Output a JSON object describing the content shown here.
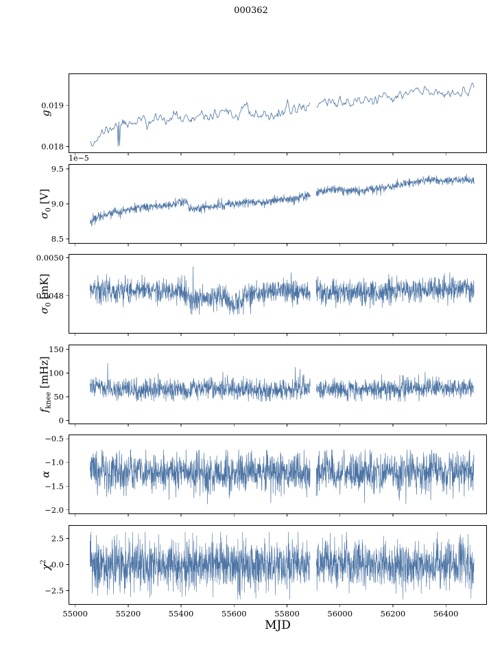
{
  "chart_data": {
    "type": "line",
    "title": "000362",
    "xlabel": "MJD",
    "line_color": "#4c74a4",
    "background": "#ffffff",
    "xlim": [
      54975,
      56555
    ],
    "x_range_data": [
      55056,
      56506
    ],
    "x_ticks": [
      55000,
      55200,
      55400,
      55600,
      55800,
      56000,
      56200,
      56400
    ],
    "x_tick_labels": [
      "55000",
      "55200",
      "55400",
      "55600",
      "55800",
      "56000",
      "56200",
      "56400"
    ],
    "gaps": [
      [
        55888,
        55910
      ]
    ],
    "panels": [
      {
        "name": "g",
        "ylabel_parts": [
          {
            "text": "g",
            "italic": true
          }
        ],
        "ylim": [
          0.01784,
          0.01977
        ],
        "ytick_values": [
          0.018,
          0.019
        ],
        "ytick_labels": [
          "0.018",
          "0.019"
        ],
        "n_points": 520,
        "seed": 11,
        "noise_amp": 0.00011,
        "smooth": 1,
        "lw": 0.8,
        "spikes": {
          "prob": 0.006,
          "amp": 0.00028,
          "dir": -1
        },
        "clip": [
          0.018,
          0.0196
        ],
        "baseline": [
          [
            55056,
            0.01823
          ],
          [
            55070,
            0.01808
          ],
          [
            55085,
            0.0182
          ],
          [
            55110,
            0.01835
          ],
          [
            55150,
            0.0185
          ],
          [
            55190,
            0.01857
          ],
          [
            55230,
            0.01862
          ],
          [
            55262,
            0.01866
          ],
          [
            55272,
            0.01842
          ],
          [
            55285,
            0.01864
          ],
          [
            55330,
            0.01868
          ],
          [
            55380,
            0.0187
          ],
          [
            55425,
            0.01872
          ],
          [
            55438,
            0.01856
          ],
          [
            55455,
            0.0187
          ],
          [
            55520,
            0.01873
          ],
          [
            55580,
            0.01876
          ],
          [
            55620,
            0.01878
          ],
          [
            55643,
            0.01903
          ],
          [
            55655,
            0.01888
          ],
          [
            55672,
            0.01876
          ],
          [
            55700,
            0.0187
          ],
          [
            55730,
            0.01874
          ],
          [
            55770,
            0.01882
          ],
          [
            55810,
            0.01888
          ],
          [
            55850,
            0.01894
          ],
          [
            55890,
            0.019
          ],
          [
            55930,
            0.01906
          ],
          [
            55960,
            0.01911
          ],
          [
            55990,
            0.01905
          ],
          [
            56020,
            0.01909
          ],
          [
            56060,
            0.01908
          ],
          [
            56100,
            0.01913
          ],
          [
            56140,
            0.01912
          ],
          [
            56180,
            0.01917
          ],
          [
            56220,
            0.01921
          ],
          [
            56255,
            0.01927
          ],
          [
            56285,
            0.01938
          ],
          [
            56310,
            0.01928
          ],
          [
            56340,
            0.01934
          ],
          [
            56370,
            0.01932
          ],
          [
            56400,
            0.01929
          ],
          [
            56430,
            0.01934
          ],
          [
            56460,
            0.0193
          ],
          [
            56506,
            0.01934
          ]
        ]
      },
      {
        "name": "sigma0-V",
        "ylabel_parts": [
          {
            "text": "σ",
            "italic": true
          },
          {
            "text": "0",
            "sub": true
          },
          {
            "text": " [V]"
          }
        ],
        "offset_text": "1e−5",
        "ylim": [
          8.43e-05,
          9.57e-05
        ],
        "ytick_values": [
          8.5e-05,
          9e-05,
          9.5e-05
        ],
        "ytick_labels": [
          "8.5",
          "9.0",
          "9.5"
        ],
        "n_points": 1500,
        "seed": 22,
        "noise_amp": 3.2e-07,
        "lw": 0.7,
        "spikes": {
          "prob": 0.004,
          "amp": 5e-07,
          "dir": 0
        },
        "clip": [
          8.62e-05,
          9.47e-05
        ],
        "baseline": [
          [
            55056,
            8.72e-05
          ],
          [
            55075,
            8.8e-05
          ],
          [
            55110,
            8.85e-05
          ],
          [
            55160,
            8.88e-05
          ],
          [
            55210,
            8.92e-05
          ],
          [
            55260,
            8.95e-05
          ],
          [
            55310,
            8.97e-05
          ],
          [
            55360,
            8.99e-05
          ],
          [
            55420,
            9.04e-05
          ],
          [
            55432,
            8.91e-05
          ],
          [
            55470,
            8.94e-05
          ],
          [
            55530,
            8.97e-05
          ],
          [
            55590,
            9e-05
          ],
          [
            55650,
            9.02e-05
          ],
          [
            55710,
            9.03e-05
          ],
          [
            55770,
            9.05e-05
          ],
          [
            55830,
            9.07e-05
          ],
          [
            55880,
            9.12e-05
          ],
          [
            55920,
            9.17e-05
          ],
          [
            55960,
            9.2e-05
          ],
          [
            56010,
            9.2e-05
          ],
          [
            56060,
            9.18e-05
          ],
          [
            56110,
            9.2e-05
          ],
          [
            56160,
            9.23e-05
          ],
          [
            56210,
            9.26e-05
          ],
          [
            56260,
            9.3e-05
          ],
          [
            56310,
            9.33e-05
          ],
          [
            56360,
            9.35e-05
          ],
          [
            56400,
            9.32e-05
          ],
          [
            56440,
            9.35e-05
          ],
          [
            56506,
            9.33e-05
          ]
        ]
      },
      {
        "name": "sigma0-mK",
        "ylabel_parts": [
          {
            "text": "σ",
            "italic": true
          },
          {
            "text": "0",
            "sub": true
          },
          {
            "text": " [mK]"
          }
        ],
        "ylim": [
          0.0046,
          0.00502
        ],
        "ytick_values": [
          0.0048,
          0.005
        ],
        "ytick_labels": [
          "0.0048",
          "0.0050"
        ],
        "n_points": 1700,
        "seed": 33,
        "noise_amp": 3.2e-05,
        "lw": 0.7,
        "spikes": {
          "prob": 0.01,
          "amp": 6e-05,
          "dir": 0
        },
        "clip": [
          0.0047,
          0.00498
        ],
        "baseline": [
          [
            55056,
            0.00483
          ],
          [
            55120,
            0.00483
          ],
          [
            55200,
            0.00482
          ],
          [
            55260,
            0.00484
          ],
          [
            55330,
            0.00482
          ],
          [
            55400,
            0.00482
          ],
          [
            55435,
            0.00478
          ],
          [
            55500,
            0.00478
          ],
          [
            55545,
            0.0048
          ],
          [
            55585,
            0.00477
          ],
          [
            55615,
            0.00476
          ],
          [
            55645,
            0.0048
          ],
          [
            55690,
            0.00481
          ],
          [
            55750,
            0.00482
          ],
          [
            55850,
            0.00482
          ],
          [
            55950,
            0.00482
          ],
          [
            56050,
            0.00482
          ],
          [
            56150,
            0.00482
          ],
          [
            56230,
            0.00484
          ],
          [
            56280,
            0.00483
          ],
          [
            56350,
            0.00483
          ],
          [
            56420,
            0.00483
          ],
          [
            56506,
            0.00483
          ]
        ]
      },
      {
        "name": "fknee",
        "ylabel_parts": [
          {
            "text": "f",
            "italic": true
          },
          {
            "text": "knee",
            "sub": true
          },
          {
            "text": " [mHz]"
          }
        ],
        "ylim": [
          -8,
          160
        ],
        "ytick_values": [
          0,
          50,
          100,
          150
        ],
        "ytick_labels": [
          "0",
          "50",
          "100",
          "150"
        ],
        "n_points": 1700,
        "seed": 44,
        "noise_amp": 11,
        "lw": 0.7,
        "spikes": {
          "prob": 0.012,
          "amp": 28,
          "dir": 1
        },
        "clip": [
          40,
          147
        ],
        "baseline": [
          [
            55056,
            70
          ],
          [
            55090,
            72
          ],
          [
            55130,
            66
          ],
          [
            55200,
            62
          ],
          [
            55280,
            64
          ],
          [
            55350,
            63
          ],
          [
            55420,
            66
          ],
          [
            55500,
            68
          ],
          [
            55570,
            66
          ],
          [
            55640,
            64
          ],
          [
            55700,
            62
          ],
          [
            55780,
            64
          ],
          [
            55860,
            66
          ],
          [
            55940,
            64
          ],
          [
            56020,
            63
          ],
          [
            56100,
            64
          ],
          [
            56180,
            67
          ],
          [
            56260,
            66
          ],
          [
            56340,
            67
          ],
          [
            56420,
            68
          ],
          [
            56506,
            66
          ]
        ]
      },
      {
        "name": "alpha",
        "ylabel_parts": [
          {
            "text": "α",
            "italic": true
          }
        ],
        "ylim": [
          -2.09,
          -0.41
        ],
        "ytick_values": [
          -0.5,
          -1.0,
          -1.5,
          -2.0
        ],
        "ytick_labels": [
          "−0.5",
          "−1.0",
          "−1.5",
          "−2.0"
        ],
        "n_points": 1700,
        "seed": 55,
        "noise_amp": 0.21,
        "lw": 0.7,
        "spikes": {
          "prob": 0.006,
          "amp": 0.3,
          "dir": 0
        },
        "clip": [
          -1.92,
          -0.73
        ],
        "baseline": [
          [
            55056,
            -1.18
          ],
          [
            55150,
            -1.22
          ],
          [
            55250,
            -1.18
          ],
          [
            55350,
            -1.2
          ],
          [
            55450,
            -1.24
          ],
          [
            55550,
            -1.26
          ],
          [
            55650,
            -1.22
          ],
          [
            55750,
            -1.18
          ],
          [
            55850,
            -1.22
          ],
          [
            55950,
            -1.2
          ],
          [
            56050,
            -1.21
          ],
          [
            56150,
            -1.22
          ],
          [
            56250,
            -1.2
          ],
          [
            56350,
            -1.21
          ],
          [
            56450,
            -1.18
          ],
          [
            56506,
            -1.2
          ]
        ]
      },
      {
        "name": "chi2",
        "ylabel_parts": [
          {
            "text": "χ",
            "italic": true
          },
          {
            "text": "2",
            "sup": true
          }
        ],
        "ylim": [
          -3.85,
          3.78
        ],
        "ytick_values": [
          2.5,
          0.0,
          -2.5
        ],
        "ytick_labels": [
          "2.5",
          "0.0",
          "−2.5"
        ],
        "n_points": 2200,
        "seed": 66,
        "noise_amp": 1.15,
        "lw": 0.6,
        "spikes": {
          "prob": 0.02,
          "amp": 0.9,
          "dir": 0
        },
        "clip": [
          -3.35,
          3.15
        ],
        "baseline": [
          [
            55056,
            0
          ],
          [
            56506,
            0
          ]
        ]
      }
    ]
  }
}
